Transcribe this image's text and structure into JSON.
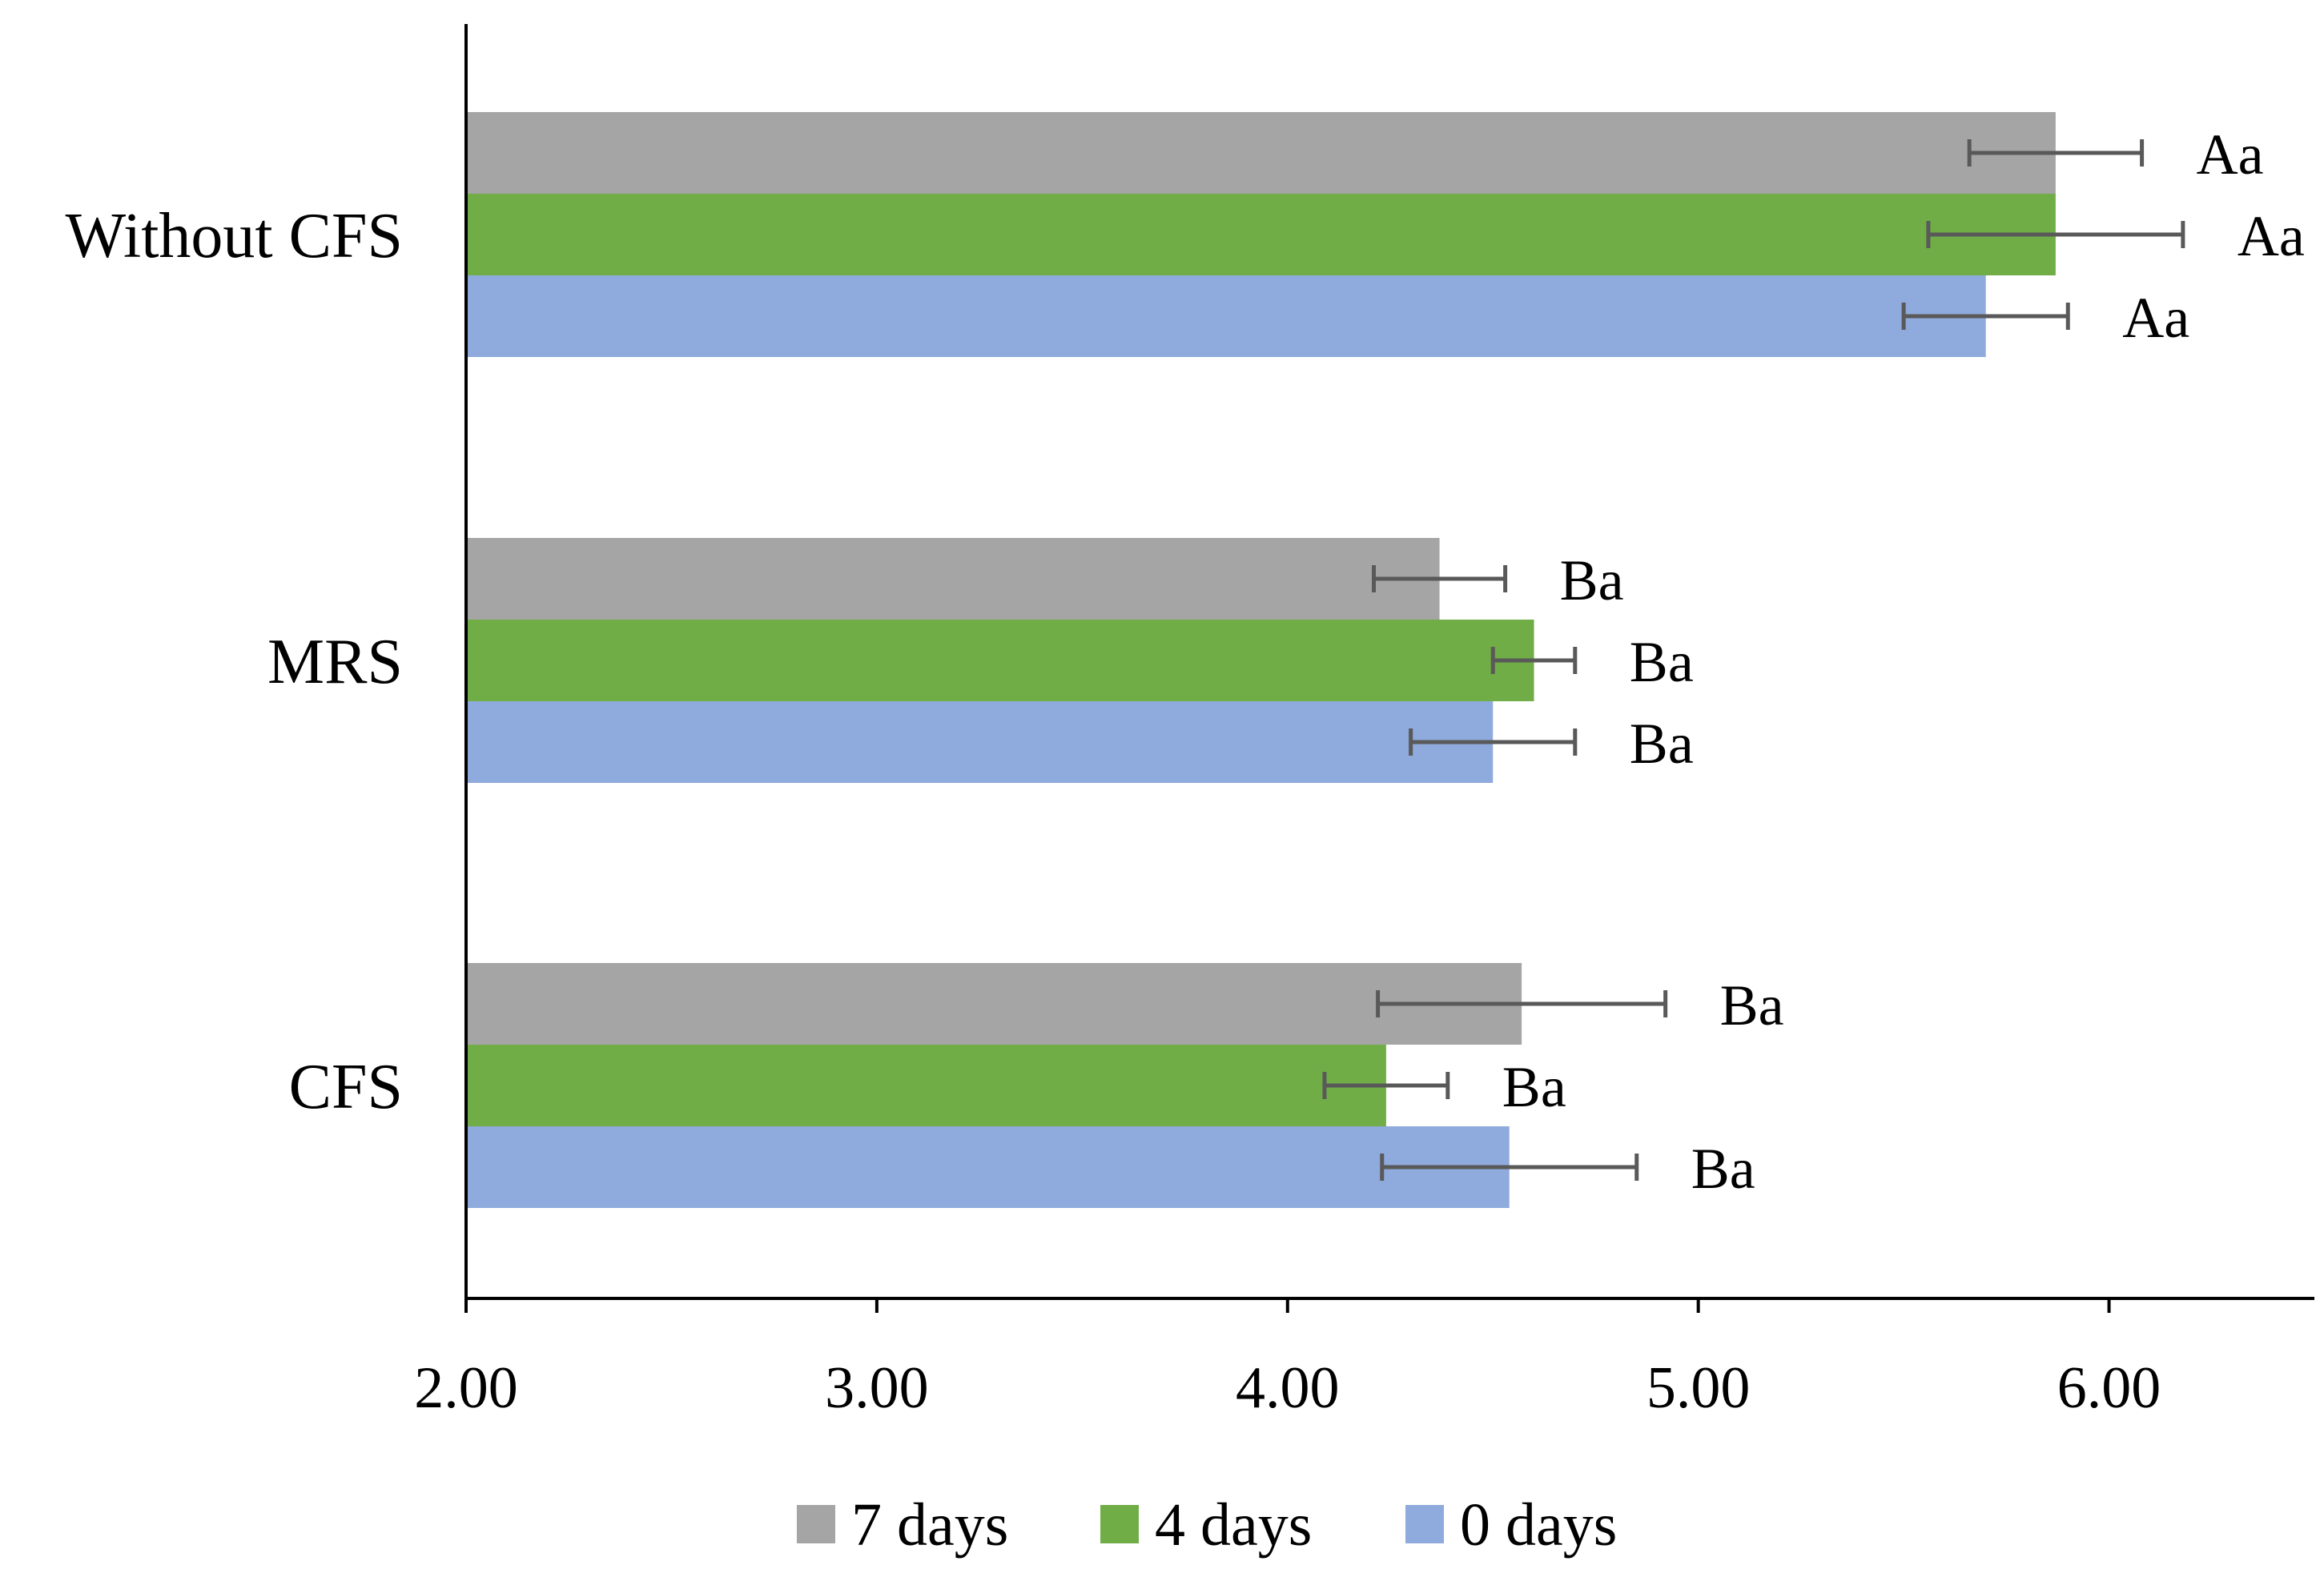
{
  "chart_data": {
    "type": "bar",
    "orientation": "horizontal",
    "title": "",
    "xlabel": "",
    "ylabel": "",
    "categories": [
      "Without CFS",
      "MRS",
      "CFS"
    ],
    "xlim": [
      2.0,
      6.5
    ],
    "xticks": [
      2.0,
      3.0,
      4.0,
      5.0,
      6.0
    ],
    "xtick_labels": [
      "2.00",
      "3.00",
      "4.00",
      "5.00",
      "6.00"
    ],
    "grid": false,
    "legend_position": "bottom",
    "series": [
      {
        "name": "7 days",
        "color": "#a5a5a5",
        "values": [
          5.87,
          4.37,
          4.57
        ],
        "errors": [
          0.21,
          0.16,
          0.35
        ],
        "labels": [
          "Aa",
          "Ba",
          "Ba"
        ]
      },
      {
        "name": "4 days",
        "color": "#70ad47",
        "values": [
          5.87,
          4.6,
          4.24
        ],
        "errors": [
          0.31,
          0.1,
          0.15
        ],
        "labels": [
          "Aa",
          "Ba",
          "Ba"
        ]
      },
      {
        "name": "0 days",
        "color": "#8faadc",
        "values": [
          5.7,
          4.5,
          4.54
        ],
        "errors": [
          0.2,
          0.2,
          0.31
        ],
        "labels": [
          "Aa",
          "Ba",
          "Ba"
        ]
      }
    ],
    "error_bar_color": "#595959"
  }
}
